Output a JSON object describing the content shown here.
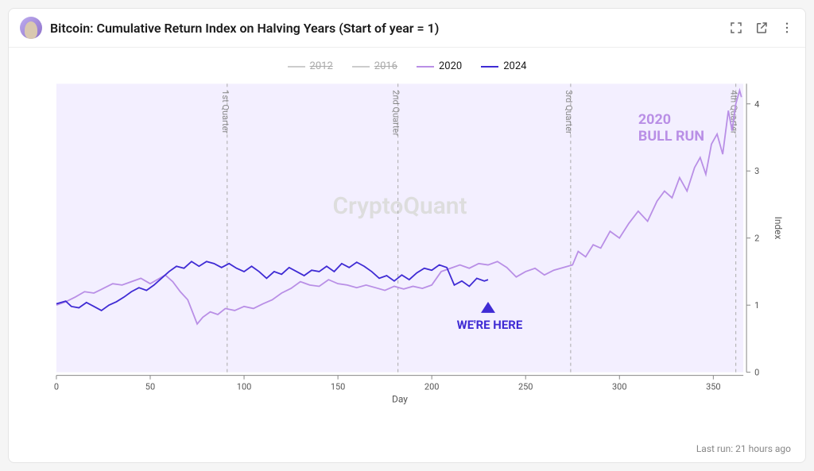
{
  "header": {
    "title": "Bitcoin: Cumulative Return Index on Halving Years (Start of year = 1)"
  },
  "footer": {
    "last_run": "Last run: 21 hours ago"
  },
  "chart": {
    "type": "line",
    "x_axis": {
      "label": "Day",
      "min": 0,
      "max": 366,
      "ticks": [
        0,
        50,
        100,
        150,
        200,
        250,
        300,
        350
      ]
    },
    "y_axis": {
      "label": "Index",
      "min": 0,
      "max": 4.3,
      "ticks": [
        0,
        1,
        2,
        3,
        4
      ]
    },
    "plot_background": "#f3efff",
    "grid_color": "#aaaaaa",
    "legend": [
      {
        "label": "2012",
        "color": "#cccccc",
        "disabled": true
      },
      {
        "label": "2016",
        "color": "#cccccc",
        "disabled": true
      },
      {
        "label": "2020",
        "color": "#b98fe6",
        "disabled": false
      },
      {
        "label": "2024",
        "color": "#3f2bd4",
        "disabled": false
      }
    ],
    "quarters": [
      {
        "label": "1st Quarter",
        "day": 91
      },
      {
        "label": "2nd Quarter",
        "day": 182
      },
      {
        "label": "3rd Quarter",
        "day": 274
      },
      {
        "label": "4th Quarter",
        "day": 362
      }
    ],
    "watermark": "CryptoQuant",
    "annotations": {
      "bull_run_line1": "2020",
      "bull_run_line2": "BULL RUN",
      "bull_run_color": "#b98fe6",
      "were_here": "WE'RE HERE",
      "were_here_color": "#3f2bd4",
      "were_here_arrow_day": 230
    },
    "series": {
      "2020": {
        "color": "#b98fe6",
        "stroke_width": 1.8,
        "data": [
          [
            0,
            1.0
          ],
          [
            5,
            1.05
          ],
          [
            10,
            1.12
          ],
          [
            15,
            1.2
          ],
          [
            20,
            1.18
          ],
          [
            25,
            1.25
          ],
          [
            30,
            1.32
          ],
          [
            35,
            1.3
          ],
          [
            40,
            1.35
          ],
          [
            45,
            1.4
          ],
          [
            50,
            1.32
          ],
          [
            55,
            1.4
          ],
          [
            58,
            1.45
          ],
          [
            62,
            1.35
          ],
          [
            66,
            1.2
          ],
          [
            70,
            1.08
          ],
          [
            75,
            0.72
          ],
          [
            78,
            0.82
          ],
          [
            82,
            0.9
          ],
          [
            86,
            0.86
          ],
          [
            90,
            0.95
          ],
          [
            95,
            0.92
          ],
          [
            100,
            0.98
          ],
          [
            105,
            0.95
          ],
          [
            110,
            1.02
          ],
          [
            115,
            1.08
          ],
          [
            120,
            1.18
          ],
          [
            125,
            1.25
          ],
          [
            130,
            1.35
          ],
          [
            135,
            1.3
          ],
          [
            140,
            1.28
          ],
          [
            145,
            1.38
          ],
          [
            150,
            1.32
          ],
          [
            155,
            1.3
          ],
          [
            160,
            1.26
          ],
          [
            165,
            1.3
          ],
          [
            170,
            1.26
          ],
          [
            175,
            1.22
          ],
          [
            180,
            1.28
          ],
          [
            185,
            1.24
          ],
          [
            190,
            1.28
          ],
          [
            195,
            1.25
          ],
          [
            200,
            1.3
          ],
          [
            205,
            1.5
          ],
          [
            210,
            1.55
          ],
          [
            215,
            1.6
          ],
          [
            220,
            1.55
          ],
          [
            225,
            1.62
          ],
          [
            230,
            1.6
          ],
          [
            235,
            1.65
          ],
          [
            240,
            1.56
          ],
          [
            245,
            1.42
          ],
          [
            250,
            1.5
          ],
          [
            255,
            1.55
          ],
          [
            260,
            1.45
          ],
          [
            265,
            1.52
          ],
          [
            270,
            1.56
          ],
          [
            275,
            1.6
          ],
          [
            278,
            1.8
          ],
          [
            282,
            1.72
          ],
          [
            286,
            1.9
          ],
          [
            290,
            1.85
          ],
          [
            295,
            2.1
          ],
          [
            300,
            2.0
          ],
          [
            305,
            2.22
          ],
          [
            310,
            2.4
          ],
          [
            315,
            2.25
          ],
          [
            320,
            2.55
          ],
          [
            324,
            2.7
          ],
          [
            328,
            2.6
          ],
          [
            332,
            2.9
          ],
          [
            336,
            2.7
          ],
          [
            340,
            3.05
          ],
          [
            343,
            3.2
          ],
          [
            346,
            2.95
          ],
          [
            349,
            3.4
          ],
          [
            352,
            3.55
          ],
          [
            355,
            3.25
          ],
          [
            358,
            3.9
          ],
          [
            360,
            3.6
          ],
          [
            362,
            4.0
          ],
          [
            364,
            4.2
          ],
          [
            365,
            4.1
          ]
        ]
      },
      "2024": {
        "color": "#3f2bd4",
        "stroke_width": 1.8,
        "data": [
          [
            0,
            1.02
          ],
          [
            5,
            1.06
          ],
          [
            8,
            0.98
          ],
          [
            12,
            0.96
          ],
          [
            16,
            1.04
          ],
          [
            20,
            0.98
          ],
          [
            24,
            0.92
          ],
          [
            28,
            1.0
          ],
          [
            32,
            1.05
          ],
          [
            36,
            1.12
          ],
          [
            40,
            1.2
          ],
          [
            44,
            1.26
          ],
          [
            48,
            1.22
          ],
          [
            52,
            1.3
          ],
          [
            56,
            1.4
          ],
          [
            60,
            1.5
          ],
          [
            64,
            1.58
          ],
          [
            68,
            1.55
          ],
          [
            72,
            1.65
          ],
          [
            76,
            1.58
          ],
          [
            80,
            1.65
          ],
          [
            84,
            1.62
          ],
          [
            88,
            1.56
          ],
          [
            92,
            1.62
          ],
          [
            96,
            1.55
          ],
          [
            100,
            1.5
          ],
          [
            104,
            1.58
          ],
          [
            108,
            1.5
          ],
          [
            112,
            1.4
          ],
          [
            116,
            1.5
          ],
          [
            120,
            1.46
          ],
          [
            124,
            1.56
          ],
          [
            128,
            1.5
          ],
          [
            132,
            1.44
          ],
          [
            136,
            1.52
          ],
          [
            140,
            1.5
          ],
          [
            144,
            1.58
          ],
          [
            148,
            1.5
          ],
          [
            152,
            1.62
          ],
          [
            156,
            1.56
          ],
          [
            160,
            1.64
          ],
          [
            164,
            1.58
          ],
          [
            168,
            1.5
          ],
          [
            172,
            1.4
          ],
          [
            176,
            1.44
          ],
          [
            180,
            1.36
          ],
          [
            184,
            1.45
          ],
          [
            188,
            1.38
          ],
          [
            192,
            1.48
          ],
          [
            196,
            1.55
          ],
          [
            200,
            1.52
          ],
          [
            204,
            1.6
          ],
          [
            208,
            1.56
          ],
          [
            212,
            1.3
          ],
          [
            216,
            1.36
          ],
          [
            220,
            1.28
          ],
          [
            224,
            1.4
          ],
          [
            228,
            1.36
          ],
          [
            230,
            1.38
          ]
        ]
      }
    }
  }
}
